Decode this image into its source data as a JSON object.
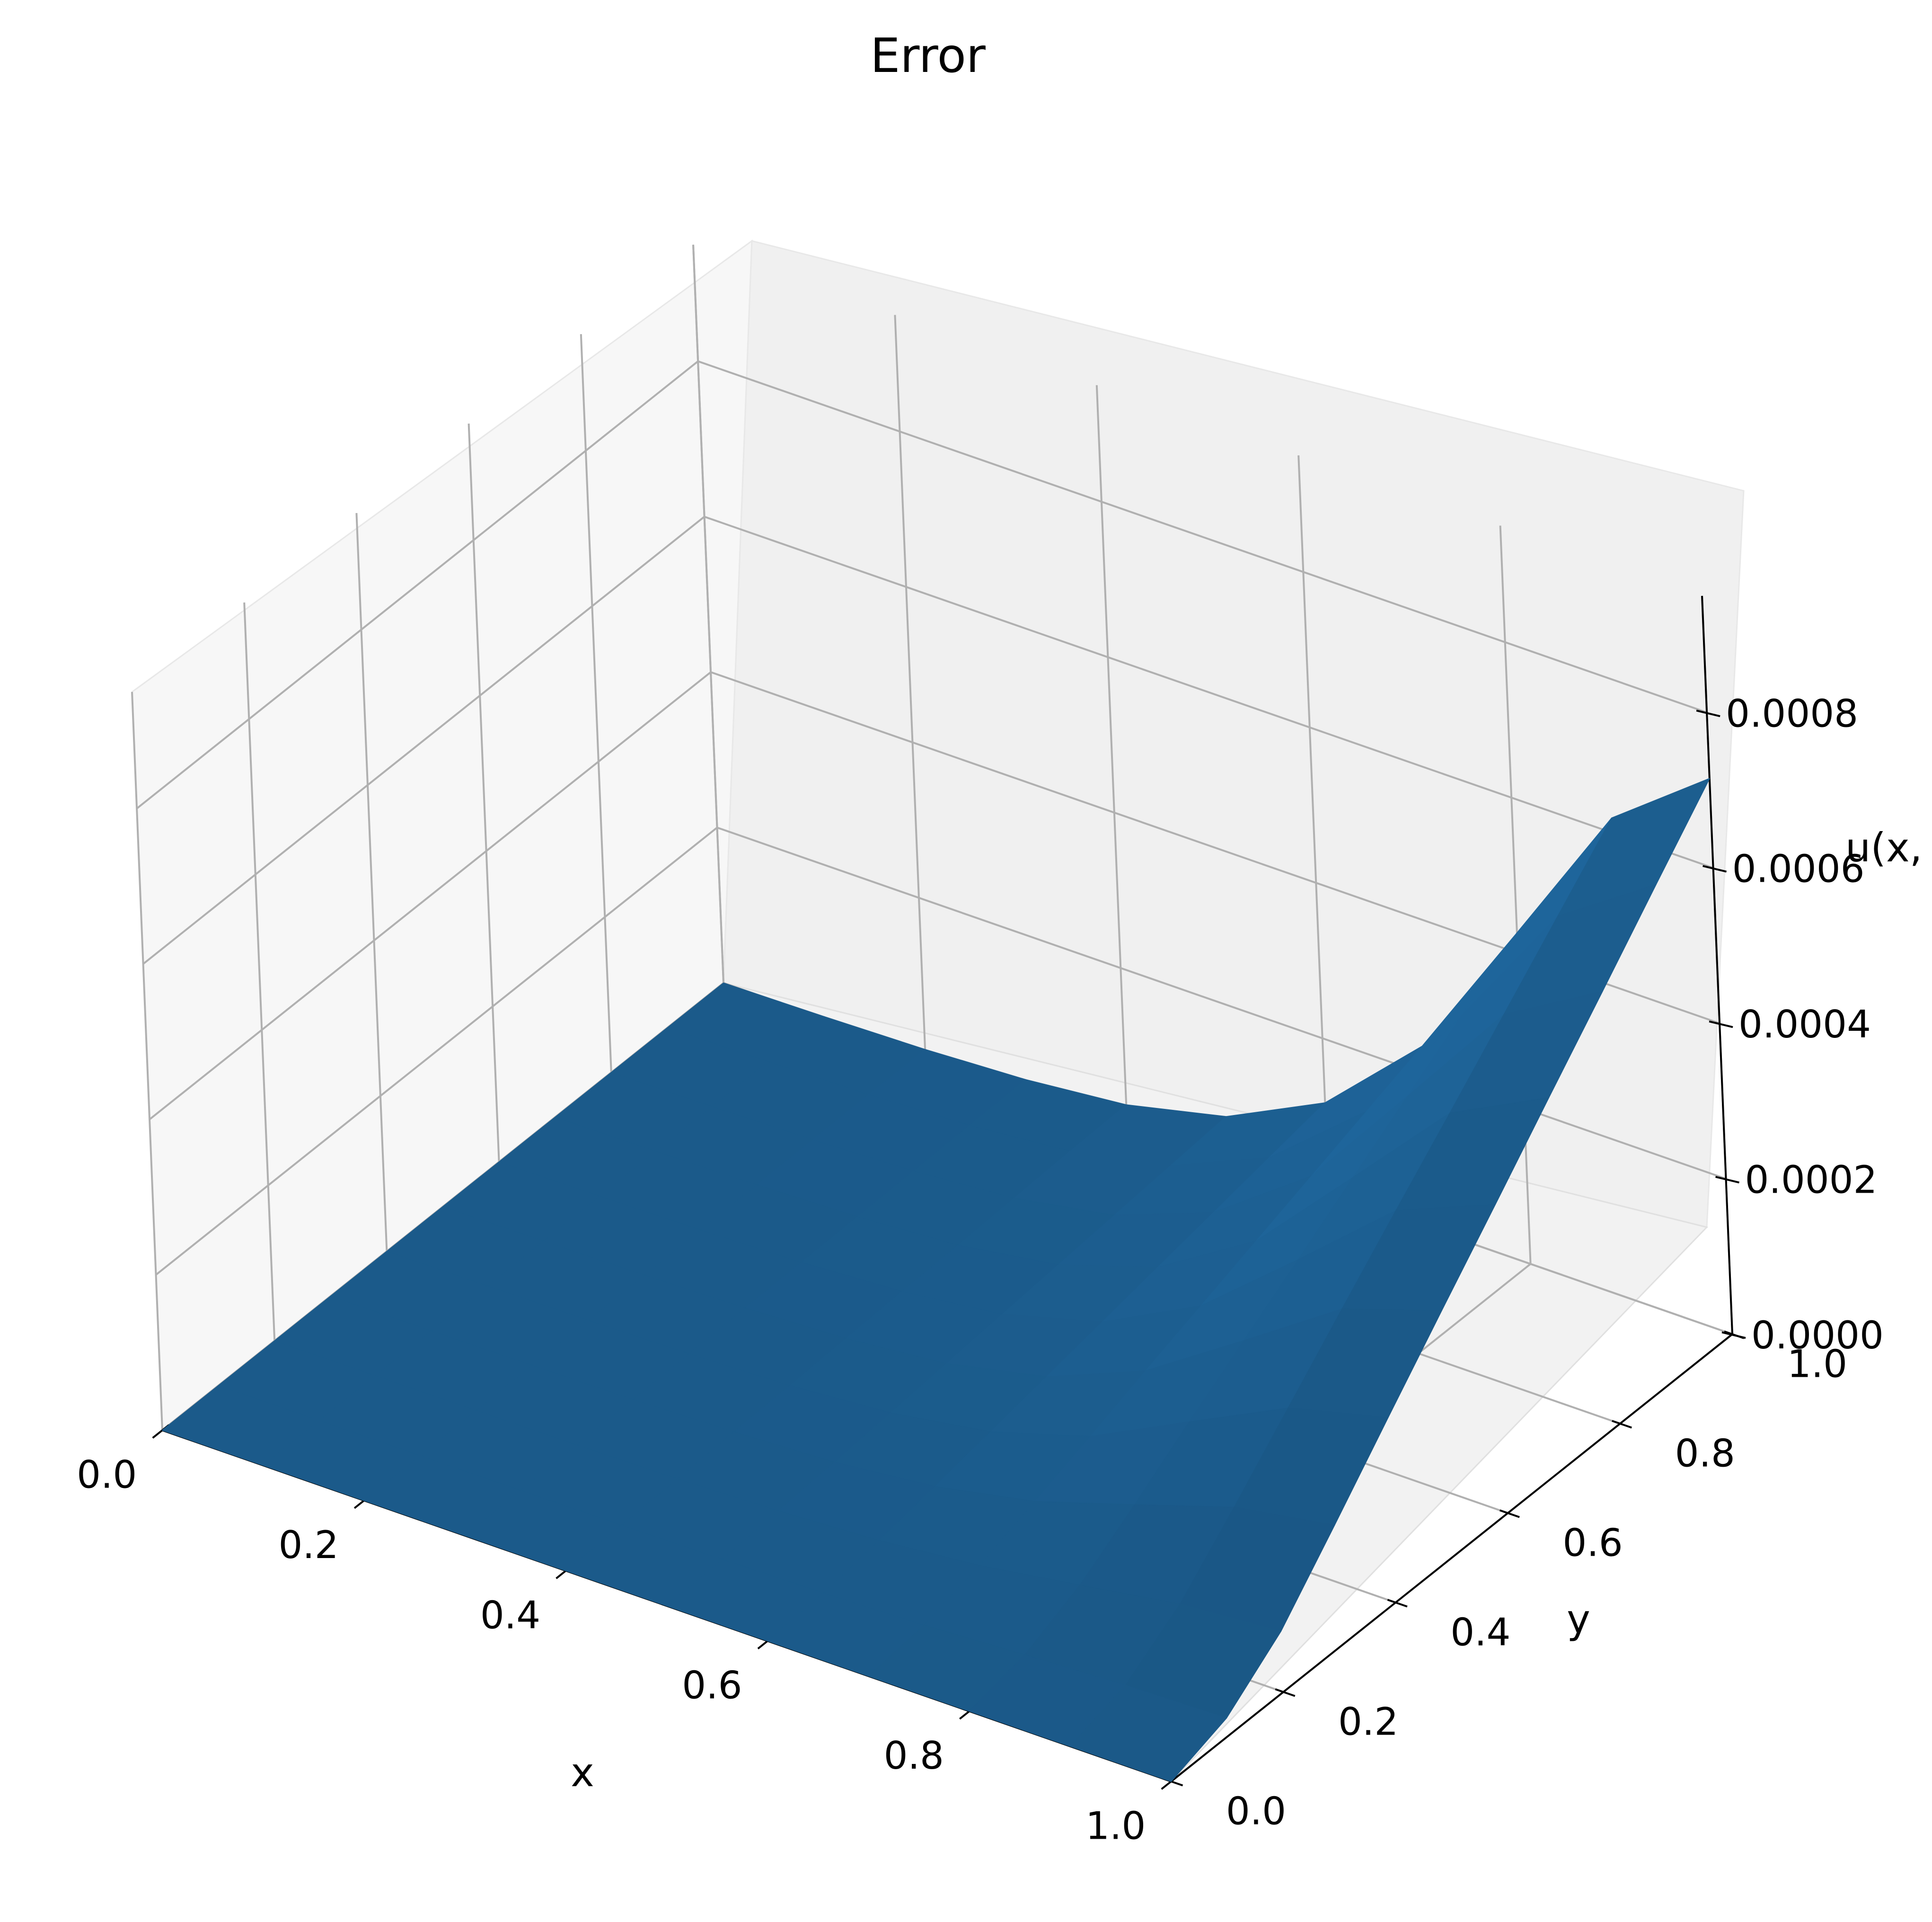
{
  "chart_data": {
    "type": "surface",
    "title": "Error",
    "xlabel": "x",
    "ylabel": "y",
    "zlabel": "u(x,",
    "xlim": [
      0.0,
      1.0
    ],
    "ylim": [
      0.0,
      1.0
    ],
    "zlim": [
      0.0,
      0.00095
    ],
    "x_ticks": [
      "0.0",
      "0.2",
      "0.4",
      "0.6",
      "0.8",
      "1.0"
    ],
    "y_ticks": [
      "0.0",
      "0.2",
      "0.4",
      "0.6",
      "0.8",
      "1.0"
    ],
    "z_ticks": [
      "0.0000",
      "0.0002",
      "0.0004",
      "0.0006",
      "0.0008"
    ],
    "grid": true,
    "surface_color": "#1b5a8a",
    "surface": {
      "x": [
        0.0,
        0.1,
        0.2,
        0.3,
        0.4,
        0.5,
        0.6,
        0.7,
        0.8,
        0.9,
        1.0
      ],
      "y": [
        0.0,
        0.1,
        0.2,
        0.3,
        0.4,
        0.5,
        0.6,
        0.7,
        0.8,
        0.9,
        1.0
      ],
      "z": [
        [
          0.0,
          0.0,
          0.0,
          0.0,
          0.0,
          0.0,
          0.0,
          0.0,
          0.0,
          0.0,
          0.0
        ],
        [
          0.0,
          1e-07,
          2e-07,
          5e-07,
          1e-06,
          2e-06,
          4e-06,
          8e-06,
          1.5e-05,
          2.1e-05,
          2.4e-05
        ],
        [
          0.0,
          2e-07,
          6e-07,
          1.4e-06,
          3e-06,
          7e-06,
          1.4e-05,
          2.7e-05,
          4.7e-05,
          6.8e-05,
          7.8e-05
        ],
        [
          0.0,
          4e-07,
          1.1e-06,
          2.5e-06,
          6e-06,
          1.2e-05,
          2.6e-05,
          5.2e-05,
          9.3e-05,
          0.000135,
          0.000157
        ],
        [
          0.0,
          6e-07,
          1.6e-06,
          3.7e-06,
          8e-06,
          1.8e-05,
          3.9e-05,
          7.8e-05,
          0.000142,
          0.000205,
          0.000238
        ],
        [
          0.0,
          8e-07,
          2.2e-06,
          5e-06,
          1.1e-05,
          2.4e-05,
          5.2e-05,
          0.000105,
          0.000189,
          0.000275,
          0.000318
        ],
        [
          0.0,
          1e-06,
          2.7e-06,
          6.2e-06,
          1.4e-05,
          3e-05,
          6.5e-05,
          0.000131,
          0.000236,
          0.000344,
          0.000397
        ],
        [
          0.0,
          1.2e-06,
          3.3e-06,
          7.4e-06,
          1.6e-05,
          3.6e-05,
          7.8e-05,
          0.000157,
          0.000284,
          0.000412,
          0.000477
        ],
        [
          0.0,
          1.4e-06,
          3.8e-06,
          8.7e-06,
          1.9e-05,
          4.2e-05,
          9.1e-05,
          0.000183,
          0.000331,
          0.000481,
          0.000556
        ],
        [
          0.0,
          1.6e-06,
          4.4e-06,
          9.9e-06,
          2.2e-05,
          4.8e-05,
          0.000104,
          0.000209,
          0.000378,
          0.00055,
          0.000636
        ],
        [
          0.0,
          1.8e-06,
          4.9e-06,
          1.12e-05,
          2.4e-05,
          5.4e-05,
          0.000117,
          0.000235,
          0.000426,
          0.000619,
          0.000715
        ]
      ]
    }
  }
}
